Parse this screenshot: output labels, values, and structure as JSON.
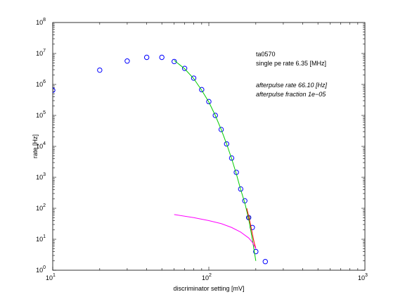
{
  "chart_data": {
    "type": "scatter",
    "xlabel": "discriminator setting [mV]",
    "ylabel": "rate [Hz]",
    "xscale": "log",
    "yscale": "log",
    "xlim": [
      10,
      1000
    ],
    "ylim": [
      1,
      100000000
    ],
    "grid": false,
    "x_ticks": [
      {
        "value": 10,
        "base": "10",
        "exp": "1"
      },
      {
        "value": 100,
        "base": "10",
        "exp": "2"
      },
      {
        "value": 1000,
        "base": "10",
        "exp": "3"
      }
    ],
    "y_ticks": [
      {
        "value": 1,
        "base": "10",
        "exp": "0"
      },
      {
        "value": 10,
        "base": "10",
        "exp": "1"
      },
      {
        "value": 100,
        "base": "10",
        "exp": "2"
      },
      {
        "value": 1000,
        "base": "10",
        "exp": "3"
      },
      {
        "value": 10000,
        "base": "10",
        "exp": "4"
      },
      {
        "value": 100000,
        "base": "10",
        "exp": "5"
      },
      {
        "value": 1000000,
        "base": "10",
        "exp": "6"
      },
      {
        "value": 10000000,
        "base": "10",
        "exp": "7"
      },
      {
        "value": 100000000,
        "base": "10",
        "exp": "8"
      }
    ],
    "annotations": {
      "id": "ta0570",
      "single_pe": "single pe rate 6.35 [MHz]",
      "afterpulse_rate": "afterpulse rate 66.10 [Hz]",
      "afterpulse_fraction": "afterpulse fraction 1e−05"
    },
    "series": [
      {
        "kind": "markers",
        "color": "#0000ff",
        "x": [
          10,
          20,
          30,
          40,
          50,
          60,
          70,
          80,
          90,
          100,
          110,
          120,
          130,
          140,
          150,
          160,
          170,
          180,
          190,
          200,
          230
        ],
        "y": [
          650000,
          2900000,
          5700000,
          7500000,
          7500000,
          5500000,
          3300000,
          1600000,
          680000,
          280000,
          100000,
          35000,
          12000,
          4200,
          1450,
          420,
          175,
          50,
          24,
          4,
          1.9
        ]
      },
      {
        "kind": "line",
        "color": "#00cc00",
        "x": [
          60,
          70,
          80,
          90,
          100,
          110,
          120,
          130,
          140,
          150,
          160,
          170,
          180,
          190,
          200
        ],
        "y": [
          6000000,
          3200000,
          1550000,
          650000,
          270000,
          100000,
          35000,
          12000,
          4000,
          1300,
          400,
          150,
          45,
          10,
          2
        ]
      },
      {
        "kind": "line",
        "color": "#ff0000",
        "x": [
          175,
          180,
          185,
          190,
          195,
          200
        ],
        "y": [
          100,
          55,
          30,
          15,
          8,
          5
        ]
      },
      {
        "kind": "line",
        "color": "#ff00ff",
        "x": [
          60,
          80,
          100,
          120,
          140,
          160,
          180,
          190,
          200
        ],
        "y": [
          63,
          50,
          40,
          32,
          24,
          17,
          11,
          8,
          5
        ]
      },
      {
        "kind": "markers-small",
        "color": "#555555",
        "x": [
          180
        ],
        "y": [
          50
        ]
      }
    ]
  }
}
